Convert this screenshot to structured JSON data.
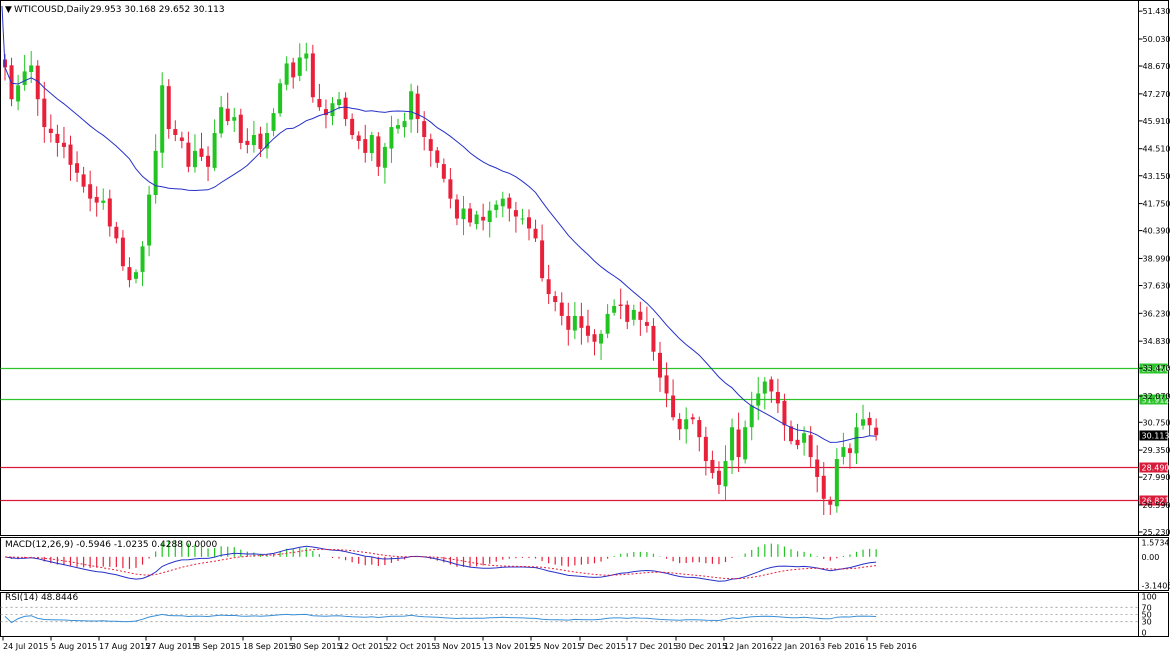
{
  "header": {
    "symbol_label": "WTICOUSD,Daily",
    "ohlc_label": "29.953 30.168 29.652 30.113"
  },
  "macd_panel": {
    "label": "MACD(12,26,9) -0.5946 -1.0235 0.4288 0.0000",
    "ticks": [
      "1.5734",
      "0.00",
      "-3.1405"
    ]
  },
  "rsi_panel": {
    "label": "RSI(14) 48.8446",
    "ticks": [
      "100",
      "70",
      "50",
      "30",
      "0"
    ]
  },
  "colors": {
    "bull": "#22c422",
    "bear": "#e8203a",
    "ma": "#2630c8",
    "support_line": "#d81b3a",
    "resistance_line": "#2ec42e",
    "rsi_line": "#3a8fd6",
    "macd_signal": "#e8203a"
  },
  "chart_data": [
    {
      "type": "candlestick",
      "title": "WTICOUSD,Daily",
      "ylim": [
        25.23,
        51.79
      ],
      "y_ticks": [
        "51.430",
        "50.030",
        "48.670",
        "47.270",
        "45.910",
        "44.510",
        "43.150",
        "41.750",
        "40.390",
        "38.990",
        "37.630",
        "36.230",
        "34.830",
        "33.470",
        "32.070",
        "30.750",
        "29.350",
        "27.990",
        "26.590",
        "25.230"
      ],
      "x_ticks": [
        "24 Jul 2015",
        "5 Aug 2015",
        "17 Aug 2015",
        "27 Aug 2015",
        "8 Sep 2015",
        "18 Sep 2015",
        "30 Sep 2015",
        "12 Oct 2015",
        "22 Oct 2015",
        "3 Nov 2015",
        "13 Nov 2015",
        "25 Nov 2015",
        "7 Dec 2015",
        "17 Dec 2015",
        "30 Dec 2015",
        "12 Jan 2016",
        "22 Jan 2016",
        "3 Feb 2016",
        "15 Feb 2016"
      ],
      "levels": [
        {
          "label": "33.456",
          "value": 33.456,
          "kind": "resistance"
        },
        {
          "label": "31.912",
          "value": 31.912,
          "kind": "resistance"
        },
        {
          "label": "28.490",
          "value": 28.49,
          "kind": "support"
        },
        {
          "label": "26.821",
          "value": 26.821,
          "kind": "support"
        }
      ],
      "current_price": {
        "label": "30.113",
        "value": 30.113
      },
      "closes": [
        48.6,
        47.0,
        47.7,
        48.4,
        48.7,
        47.0,
        45.6,
        45.3,
        44.8,
        44.6,
        43.7,
        43.3,
        42.6,
        42.0,
        41.8,
        41.9,
        40.6,
        40.0,
        38.6,
        37.9,
        38.3,
        39.6,
        42.2,
        44.4,
        47.7,
        45.5,
        45.2,
        44.9,
        43.6,
        44.4,
        44.1,
        43.6,
        45.3,
        46.6,
        45.9,
        46.1,
        44.8,
        44.7,
        45.2,
        44.5,
        45.3,
        46.3,
        47.8,
        48.8,
        48.1,
        49.1,
        49.3,
        47.1,
        46.6,
        46.2,
        46.8,
        47.0,
        46.0,
        45.2,
        44.9,
        44.3,
        45.2,
        43.6,
        44.6,
        45.6,
        45.7,
        45.9,
        47.4,
        46.0,
        45.1,
        44.4,
        43.8,
        43.0,
        42.0,
        41.0,
        41.5,
        40.8,
        41.2,
        40.9,
        41.4,
        41.7,
        42.0,
        41.5,
        41.1,
        41.0,
        40.5,
        40.0,
        38.0,
        37.2,
        36.8,
        36.1,
        35.4,
        36.1,
        35.5,
        35.1,
        34.8,
        35.2,
        36.2,
        36.6,
        36.6,
        35.8,
        36.4,
        35.9,
        35.6,
        34.3,
        33.0,
        32.2,
        31.0,
        30.4,
        30.9,
        30.9,
        30.0,
        28.8,
        28.2,
        27.6,
        28.8,
        30.5,
        29.0,
        30.5,
        31.6,
        32.2,
        32.8,
        32.3,
        31.7,
        30.6,
        29.8,
        29.6,
        30.2,
        29.0,
        28.0,
        26.9,
        26.6,
        28.9,
        29.5,
        29.2,
        30.5,
        30.9,
        30.6,
        30.1
      ]
    }
  ]
}
